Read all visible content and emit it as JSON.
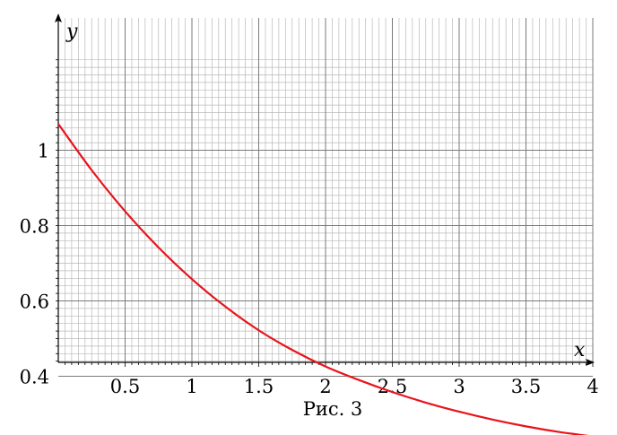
{
  "chart_data": {
    "type": "line",
    "title": "",
    "caption": "Рис. 3",
    "xlabel": "x",
    "ylabel": "y",
    "xlim": [
      0,
      4
    ],
    "ylim": [
      0.24,
      1.14
    ],
    "x_ticks": [
      0.5,
      1,
      1.5,
      2,
      2.5,
      3,
      3.5,
      4
    ],
    "x_tick_labels": [
      "0.5",
      "1",
      "1.5",
      "2",
      "2.5",
      "3",
      "3.5",
      "4"
    ],
    "y_ticks": [
      0.4,
      0.6,
      0.8,
      1
    ],
    "y_tick_labels": [
      "0.4",
      "0.6",
      "0.8",
      "1"
    ],
    "grid": true,
    "legend": "none",
    "series": [
      {
        "color": "#e8141b",
        "x": [
          0,
          0.25,
          0.5,
          0.75,
          1,
          1.25,
          1.5,
          1.75,
          2,
          2.25,
          2.5,
          2.75,
          3,
          3.25,
          3.5,
          3.75,
          4
        ],
        "y": [
          1.07,
          0.947,
          0.838,
          0.742,
          0.658,
          0.585,
          0.522,
          0.47,
          0.426,
          0.39,
          0.358,
          0.33,
          0.306,
          0.285,
          0.267,
          0.252,
          0.24
        ]
      }
    ]
  }
}
